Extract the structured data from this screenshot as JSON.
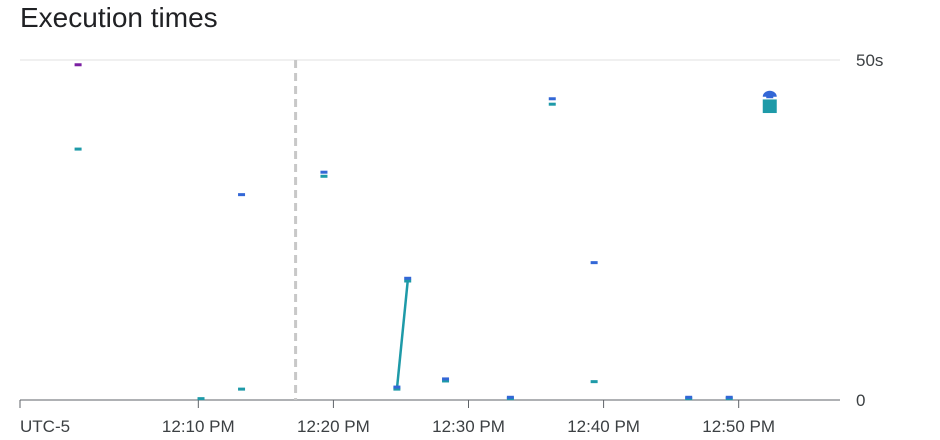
{
  "title": "Execution times",
  "chart_data": {
    "type": "scatter",
    "title": "Execution times",
    "timezone_label": "UTC-5",
    "x_ticks": [
      "12:10 PM",
      "12:20 PM",
      "12:30 PM",
      "12:40 PM",
      "12:50 PM"
    ],
    "x_tick_minutes": [
      10,
      20,
      30,
      40,
      50
    ],
    "x_range_minutes": [
      -3.2,
      57.5
    ],
    "y_ticks": [
      "0",
      "50s"
    ],
    "y_tick_values": [
      0,
      50
    ],
    "ylim": [
      0,
      50
    ],
    "y_unit": "s",
    "marker_line_minute": 17.2,
    "colors": {
      "blue": "#3367d6",
      "teal": "#1e9aa8",
      "purple": "#7b1fa2",
      "grid": "#e0e0e0",
      "axis": "#5f6368",
      "marker": "#c8c8c8"
    },
    "series": [
      {
        "color": "purple",
        "points": [
          [
            1.1,
            49.3
          ]
        ]
      },
      {
        "color": "teal",
        "points": [
          [
            1.1,
            36.9
          ],
          [
            10.2,
            0.2
          ],
          [
            13.2,
            1.6
          ],
          [
            19.3,
            32.9
          ],
          [
            24.7,
            1.6
          ],
          [
            25.5,
            17.5
          ],
          [
            28.3,
            2.8
          ],
          [
            33.1,
            0.2
          ],
          [
            36.2,
            43.5
          ],
          [
            39.3,
            2.7
          ],
          [
            46.3,
            0.2
          ],
          [
            49.3,
            0.2
          ],
          [
            52.3,
            43.8
          ]
        ]
      },
      {
        "color": "blue",
        "points": [
          [
            13.2,
            30.2
          ],
          [
            19.3,
            33.5
          ],
          [
            24.7,
            1.9
          ],
          [
            25.5,
            17.9
          ],
          [
            28.3,
            3.1
          ],
          [
            33.1,
            0.4
          ],
          [
            36.2,
            44.3
          ],
          [
            39.3,
            20.2
          ],
          [
            46.3,
            0.4
          ],
          [
            49.3,
            0.4
          ],
          [
            52.3,
            44.6
          ]
        ]
      }
    ],
    "line_segment": {
      "color": "teal",
      "points": [
        [
          24.7,
          1.6
        ],
        [
          25.5,
          17.5
        ]
      ]
    },
    "grid": true
  }
}
